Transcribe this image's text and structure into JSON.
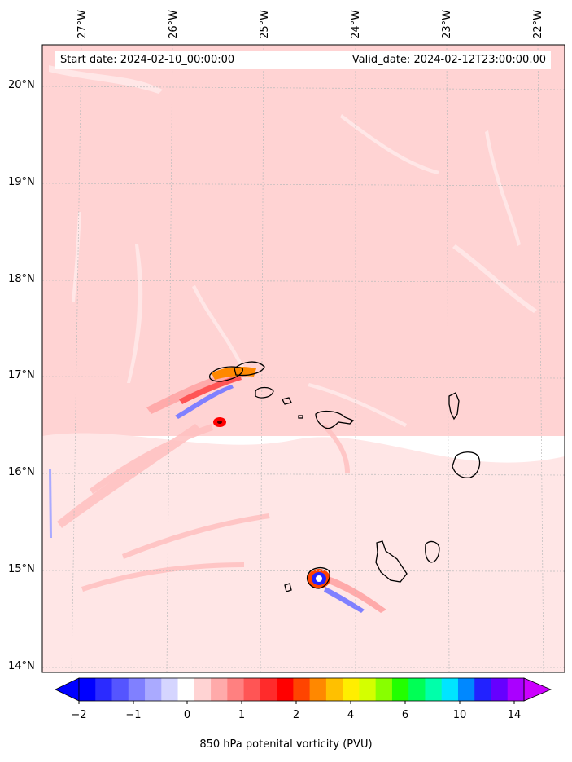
{
  "map": {
    "start_date": "Start date: 2024-02-10_00:00:00",
    "valid_date": "Valid_date: 2024-02-12T23:00:00.00",
    "lon_labels": [
      "27°W",
      "26°W",
      "25°W",
      "24°W",
      "23°W",
      "22°W"
    ],
    "lat_labels": [
      "20°N",
      "19°N",
      "18°N",
      "17°N",
      "16°N",
      "15°N",
      "14°N"
    ],
    "background_color": "#ffd3d3",
    "south_color": "#ffe6e6"
  },
  "colorbar": {
    "ticks": [
      "−2",
      "−1",
      "0",
      "1",
      "2",
      "4",
      "6",
      "10",
      "14"
    ],
    "colors": [
      "#0000ff",
      "#2b2bff",
      "#5555ff",
      "#8080ff",
      "#aaaaff",
      "#d5d5ff",
      "#ffffff",
      "#ffd3d3",
      "#ffaaaa",
      "#ff8080",
      "#ff5555",
      "#ff2b2b",
      "#ff0000",
      "#ff4400",
      "#ff8800",
      "#ffc000",
      "#ffee00",
      "#d4ff00",
      "#88ff00",
      "#22ff00",
      "#00ff55",
      "#00ffaa",
      "#00e5ff",
      "#0088ff",
      "#2222ff",
      "#6600ff",
      "#aa00ff"
    ],
    "title": "850 hPa potenital vorticity (PVU)"
  }
}
